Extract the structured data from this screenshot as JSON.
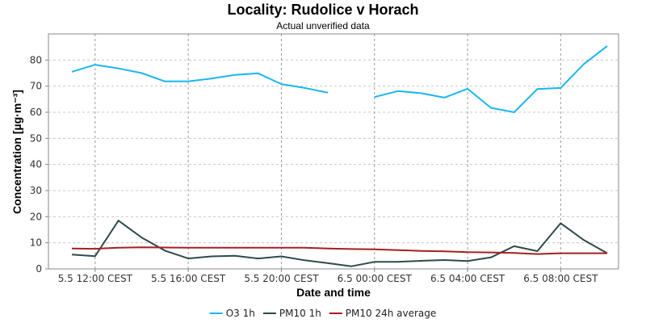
{
  "chart_data": {
    "type": "line",
    "title": "Locality: Rudolice v Horach",
    "subtitle": "Actual unverified data",
    "xlabel": "Date and time",
    "ylabel": "Concentration [µg·m⁻³]",
    "x": [
      "5.5 11:00",
      "5.5 12:00",
      "5.5 13:00",
      "5.5 14:00",
      "5.5 15:00",
      "5.5 16:00",
      "5.5 17:00",
      "5.5 18:00",
      "5.5 19:00",
      "5.5 20:00",
      "5.5 21:00",
      "5.5 22:00",
      "5.5 23:00",
      "6.5 00:00",
      "6.5 01:00",
      "6.5 02:00",
      "6.5 03:00",
      "6.5 04:00",
      "6.5 05:00",
      "6.5 06:00",
      "6.5 07:00",
      "6.5 08:00",
      "6.5 09:00",
      "6.5 10:00"
    ],
    "xticks": [
      "5.5 12:00 CEST",
      "5.5 16:00 CEST",
      "5.5 20:00 CEST",
      "6.5 00:00 CEST",
      "6.5 04:00 CEST",
      "6.5 08:00 CEST"
    ],
    "ylim": [
      0,
      90
    ],
    "yticks": [
      "0",
      "10",
      "20",
      "30",
      "40",
      "50",
      "60",
      "70",
      "80"
    ],
    "grid": true,
    "legend_position": "bottom",
    "series": [
      {
        "name": "O3 1h",
        "color": "#1ab6ee",
        "values": [
          75.5,
          78.2,
          76.8,
          75.0,
          71.8,
          71.8,
          72.9,
          74.3,
          74.9,
          70.8,
          69.3,
          67.5,
          null,
          65.8,
          68.1,
          67.3,
          65.6,
          69.0,
          61.7,
          60.0,
          68.9,
          69.3,
          78.5,
          85.4
        ]
      },
      {
        "name": "PM10 1h",
        "color": "#2e4a4a",
        "values": [
          5.5,
          4.9,
          18.5,
          12.0,
          7.0,
          4.0,
          4.8,
          5.0,
          4.0,
          4.8,
          3.3,
          2.2,
          1.0,
          2.7,
          2.7,
          3.1,
          3.4,
          3.0,
          4.4,
          8.7,
          6.8,
          17.5,
          11.0,
          6.0
        ]
      },
      {
        "name": "PM10 24h average",
        "color": "#a52020",
        "values": [
          7.8,
          7.7,
          8.1,
          8.3,
          8.2,
          8.1,
          8.1,
          8.1,
          8.1,
          8.1,
          8.1,
          7.8,
          7.6,
          7.5,
          7.2,
          6.9,
          6.7,
          6.4,
          6.3,
          6.1,
          5.7,
          6.0,
          6.0,
          6.0
        ]
      }
    ]
  }
}
